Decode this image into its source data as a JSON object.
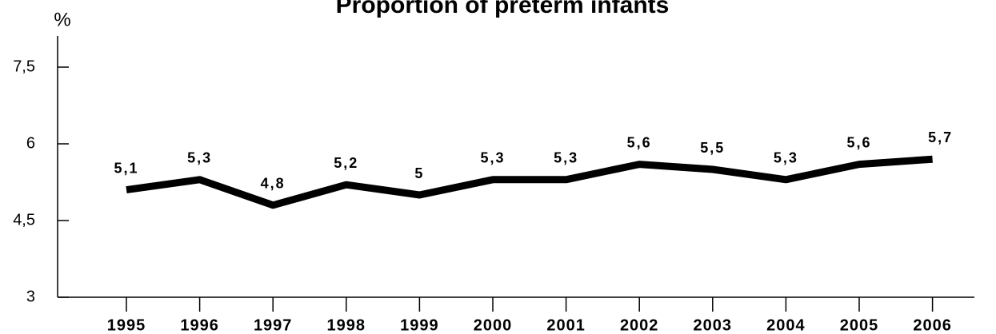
{
  "chart_data": {
    "type": "line",
    "title": "Proportion of preterm infants",
    "y_label": "%",
    "categories": [
      "1995",
      "1996",
      "1997",
      "1998",
      "1999",
      "2000",
      "2001",
      "2002",
      "2003",
      "2004",
      "2005",
      "2006"
    ],
    "series": [
      {
        "name": "Proportion of preterm infants",
        "color": "#000000",
        "values": [
          5.1,
          5.3,
          4.8,
          5.2,
          5,
          5.3,
          5.3,
          5.6,
          5.5,
          5.3,
          5.6,
          5.7
        ],
        "value_labels": [
          "5,1",
          "5,3",
          "4,8",
          "5,2",
          "5",
          "5,3",
          "5,3",
          "5,6",
          "5,5",
          "5,3",
          "5,6",
          "5,7"
        ]
      }
    ],
    "ylim": [
      3,
      8
    ],
    "yticks": [
      3,
      {
        "value": 4.5,
        "label": "4,5"
      },
      6,
      {
        "value": 7.5,
        "label": "7,5"
      }
    ],
    "grid": false
  }
}
